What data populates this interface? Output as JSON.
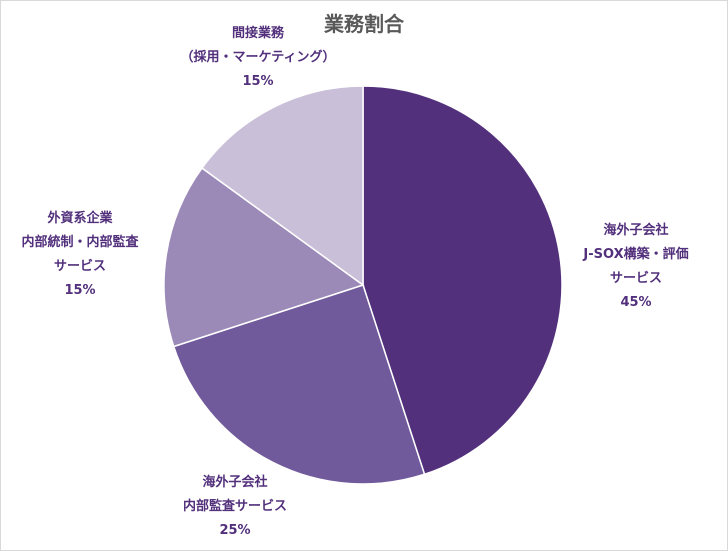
{
  "chart_data": {
    "type": "pie",
    "title": "業務割合",
    "slices": [
      {
        "lines": [
          "海外子会社",
          "J-SOX構築・評価",
          "サービス"
        ],
        "value": 45,
        "value_label": "45%",
        "color": "#52307c"
      },
      {
        "lines": [
          "海外子会社",
          "内部監査サービス"
        ],
        "value": 25,
        "value_label": "25%",
        "color": "#715a9b"
      },
      {
        "lines": [
          "外資系企業",
          "内部統制・内部監査",
          "サービス"
        ],
        "value": 15,
        "value_label": "15%",
        "color": "#9b8ab8"
      },
      {
        "lines": [
          "間接業務",
          "（採用・マーケティング）"
        ],
        "value": 15,
        "value_label": "15%",
        "color": "#c9bfd8"
      }
    ],
    "label_color": "#52307c"
  }
}
